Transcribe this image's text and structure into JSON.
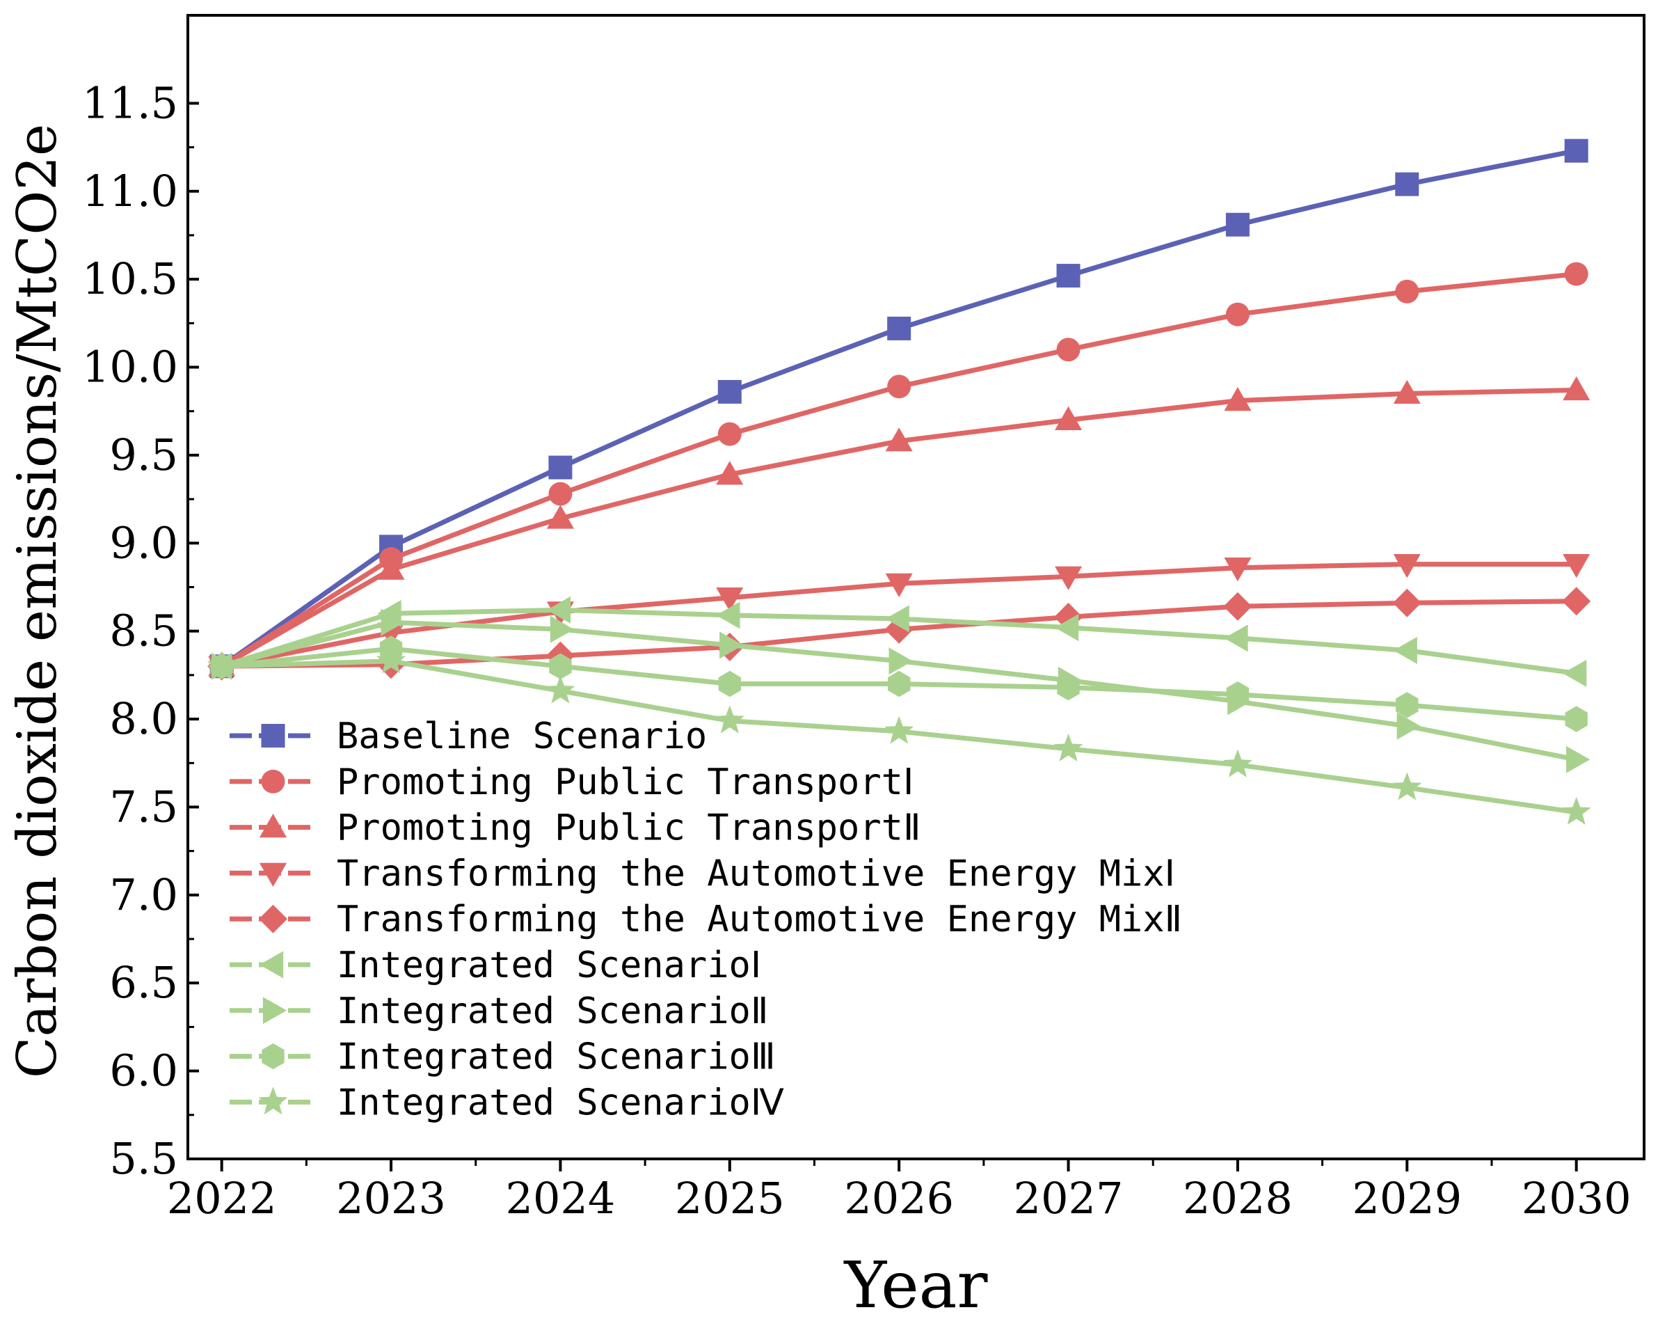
{
  "chart_data": {
    "type": "line",
    "title": "",
    "xlabel": "Year",
    "ylabel": "Carbon dioxide emissions/MtCO2e",
    "x": [
      2022,
      2023,
      2024,
      2025,
      2026,
      2027,
      2028,
      2029,
      2030
    ],
    "xlim": [
      2021.8,
      2030.4
    ],
    "ylim": [
      5.5,
      12.0
    ],
    "yticks": [
      5.5,
      6.0,
      6.5,
      7.0,
      7.5,
      8.0,
      8.5,
      9.0,
      9.5,
      10.0,
      10.5,
      11.0,
      11.5
    ],
    "ytick_labels": [
      "5.5",
      "6.0",
      "6.5",
      "7.0",
      "7.5",
      "8.0",
      "8.5",
      "9.0",
      "9.5",
      "10.0",
      "10.5",
      "11.0",
      "11.5"
    ],
    "xtick_labels": [
      "2022",
      "2023",
      "2024",
      "2025",
      "2026",
      "2027",
      "2028",
      "2029",
      "2030"
    ],
    "grid": false,
    "legend_position": "lower-left",
    "colors": {
      "blue": "#5b62b5",
      "red": "#e06666",
      "green": "#a9d18e"
    },
    "series": [
      {
        "name": "Baseline Scenario",
        "color": "#5b62b5",
        "marker": "square",
        "values": [
          8.3,
          8.98,
          9.43,
          9.86,
          10.22,
          10.52,
          10.81,
          11.04,
          11.23
        ]
      },
      {
        "name": "Promoting Public TransportⅠ",
        "color": "#e06666",
        "marker": "circle",
        "values": [
          8.3,
          8.91,
          9.28,
          9.62,
          9.89,
          10.1,
          10.3,
          10.43,
          10.53
        ]
      },
      {
        "name": "Promoting Public TransportⅡ",
        "color": "#e06666",
        "marker": "triangle-up",
        "values": [
          8.3,
          8.85,
          9.14,
          9.39,
          9.58,
          9.7,
          9.81,
          9.85,
          9.87
        ]
      },
      {
        "name": "Transforming the Automotive Energy MixⅠ",
        "color": "#e06666",
        "marker": "triangle-down",
        "values": [
          8.3,
          8.49,
          8.61,
          8.69,
          8.77,
          8.81,
          8.86,
          8.88,
          8.88
        ]
      },
      {
        "name": "Transforming the Automotive Energy MixⅡ",
        "color": "#e06666",
        "marker": "diamond",
        "values": [
          8.3,
          8.31,
          8.36,
          8.41,
          8.51,
          8.58,
          8.64,
          8.66,
          8.67
        ]
      },
      {
        "name": "Integrated ScenarioⅠ",
        "color": "#a9d18e",
        "marker": "triangle-left",
        "values": [
          8.3,
          8.6,
          8.62,
          8.59,
          8.57,
          8.52,
          8.46,
          8.39,
          8.26
        ]
      },
      {
        "name": "Integrated ScenarioⅡ",
        "color": "#a9d18e",
        "marker": "triangle-right",
        "values": [
          8.3,
          8.55,
          8.51,
          8.42,
          8.33,
          8.22,
          8.1,
          7.96,
          7.77
        ]
      },
      {
        "name": "Integrated ScenarioⅢ",
        "color": "#a9d18e",
        "marker": "hexagon",
        "values": [
          8.3,
          8.4,
          8.3,
          8.2,
          8.2,
          8.18,
          8.14,
          8.08,
          8.0
        ]
      },
      {
        "name": "Integrated ScenarioⅣ",
        "color": "#a9d18e",
        "marker": "star",
        "values": [
          8.3,
          8.33,
          8.16,
          7.99,
          7.93,
          7.83,
          7.74,
          7.61,
          7.47
        ]
      }
    ]
  }
}
